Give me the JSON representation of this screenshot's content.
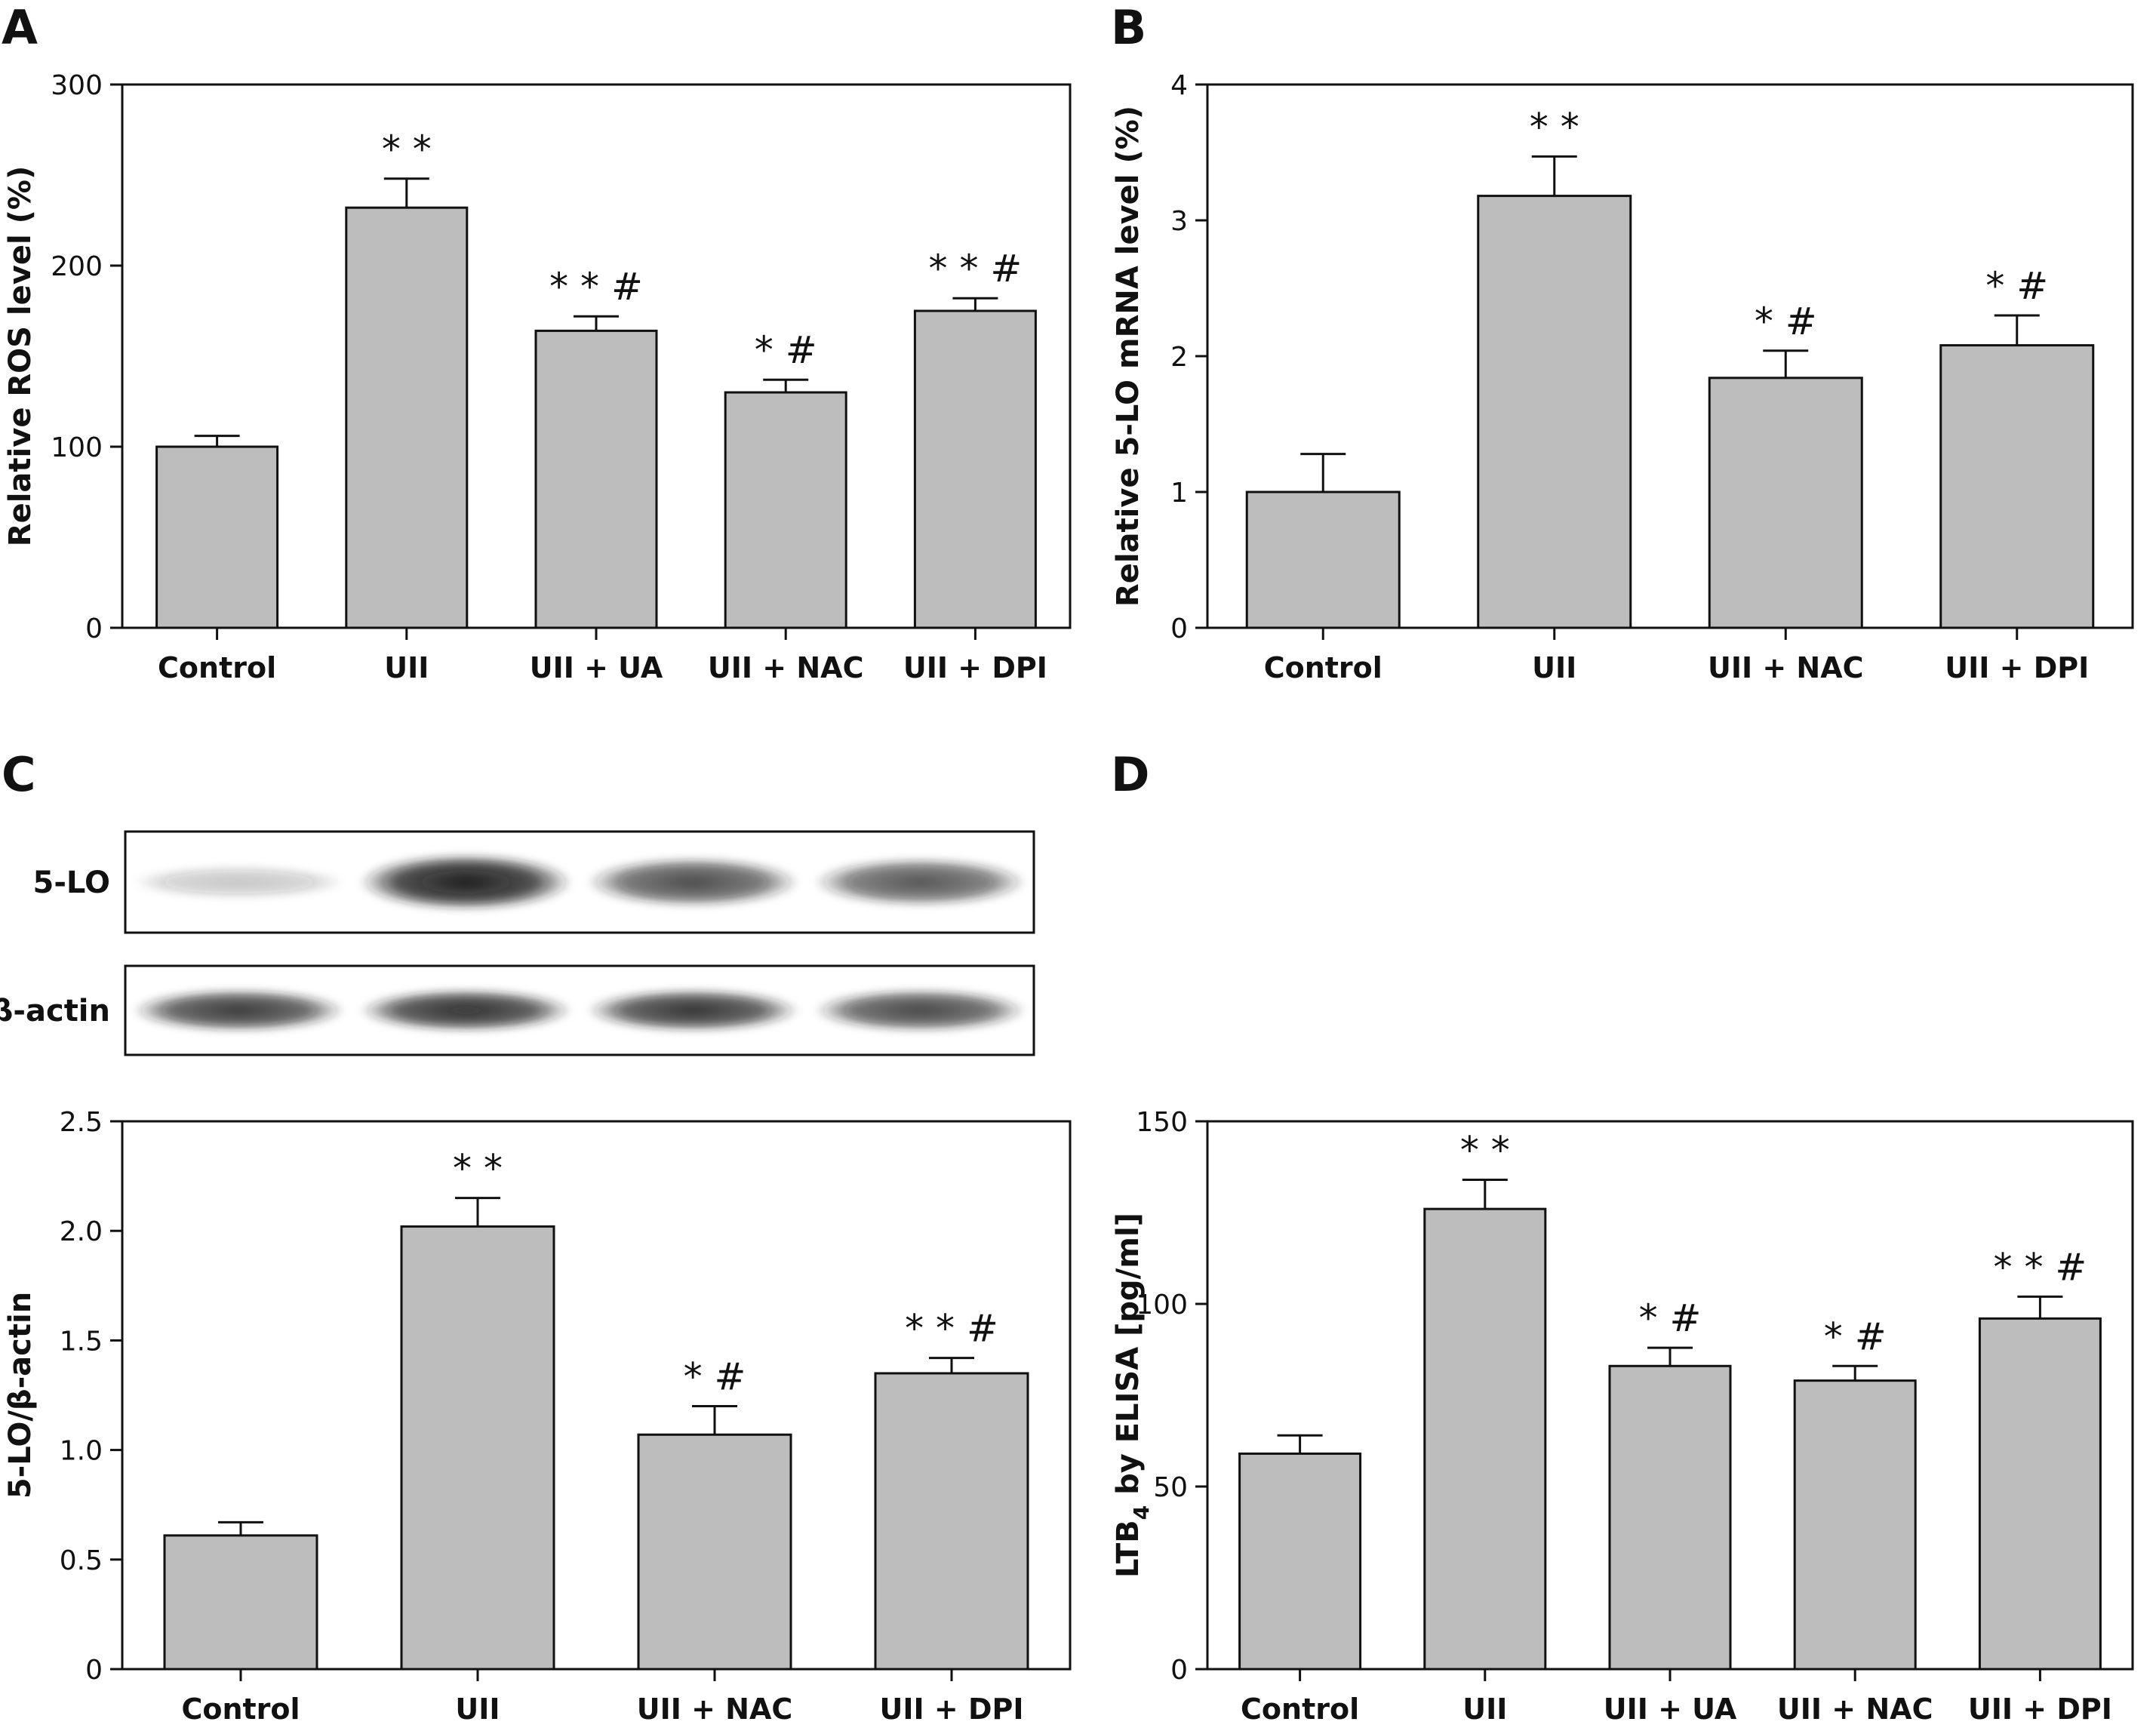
{
  "colors": {
    "bar_fill": "#bdbdbd",
    "ink": "#111111",
    "band": "#1c1c1c"
  },
  "chart_data": [
    {
      "panel": "A",
      "type": "bar",
      "categories": [
        "Control",
        "UII",
        "UII + UA",
        "UII + NAC",
        "UII + DPI"
      ],
      "values": [
        100,
        232,
        164,
        130,
        175
      ],
      "errors": [
        6,
        16,
        8,
        7,
        7
      ],
      "significance": [
        "",
        "**",
        "**#",
        "*#",
        "**#"
      ],
      "ylabel": "Relative ROS level (%)",
      "ylim": [
        0,
        300
      ],
      "yticks": [
        0,
        100,
        200,
        300
      ],
      "ytick_labels": [
        "0",
        "100",
        "200",
        "300"
      ],
      "grid": false
    },
    {
      "panel": "B",
      "type": "bar",
      "categories": [
        "Control",
        "UII",
        "UII + NAC",
        "UII + DPI"
      ],
      "values": [
        1.0,
        3.18,
        1.84,
        2.08
      ],
      "errors": [
        0.28,
        0.29,
        0.2,
        0.22
      ],
      "significance": [
        "",
        "**",
        "*#",
        "*#"
      ],
      "ylabel": "Relative 5-LO mRNA level (%)",
      "ylim": [
        0,
        4
      ],
      "yticks": [
        0,
        1,
        2,
        3,
        4
      ],
      "ytick_labels": [
        "0",
        "1",
        "2",
        "3",
        "4"
      ],
      "grid": false
    },
    {
      "panel": "C",
      "type": "bar",
      "blot": {
        "rows": [
          {
            "label": "5-LO",
            "intensity": [
              0.25,
              1.0,
              0.78,
              0.74
            ]
          },
          {
            "label": "β-actin",
            "intensity": [
              0.85,
              0.9,
              0.88,
              0.8
            ]
          }
        ]
      },
      "categories": [
        "Control",
        "UII",
        "UII + NAC",
        "UII + DPI"
      ],
      "values": [
        0.61,
        2.02,
        1.07,
        1.35
      ],
      "errors": [
        0.06,
        0.13,
        0.13,
        0.07
      ],
      "significance": [
        "",
        "**",
        "*#",
        "**#"
      ],
      "ylabel": "5-LO/β-actin",
      "ylim": [
        0,
        2.5
      ],
      "yticks": [
        0,
        0.5,
        1.0,
        1.5,
        2.0,
        2.5
      ],
      "ytick_labels": [
        "0",
        "0.5",
        "1.0",
        "1.5",
        "2.0",
        "2.5"
      ],
      "grid": false
    },
    {
      "panel": "D",
      "type": "bar",
      "categories": [
        "Control",
        "UII",
        "UII + UA",
        "UII + NAC",
        "UII + DPI"
      ],
      "values": [
        59,
        126,
        83,
        79,
        96
      ],
      "errors": [
        5,
        8,
        5,
        4,
        6
      ],
      "significance": [
        "",
        "**",
        "*#",
        "*#",
        "**#"
      ],
      "ylabel": "LTB4 by ELISA [pg/ml]",
      "ylabel_parts": [
        "LTB",
        "4",
        " by ELISA [pg/ml]"
      ],
      "ylim": [
        0,
        150
      ],
      "yticks": [
        0,
        50,
        100,
        150
      ],
      "ytick_labels": [
        "0",
        "50",
        "100",
        "150"
      ],
      "grid": false
    }
  ]
}
